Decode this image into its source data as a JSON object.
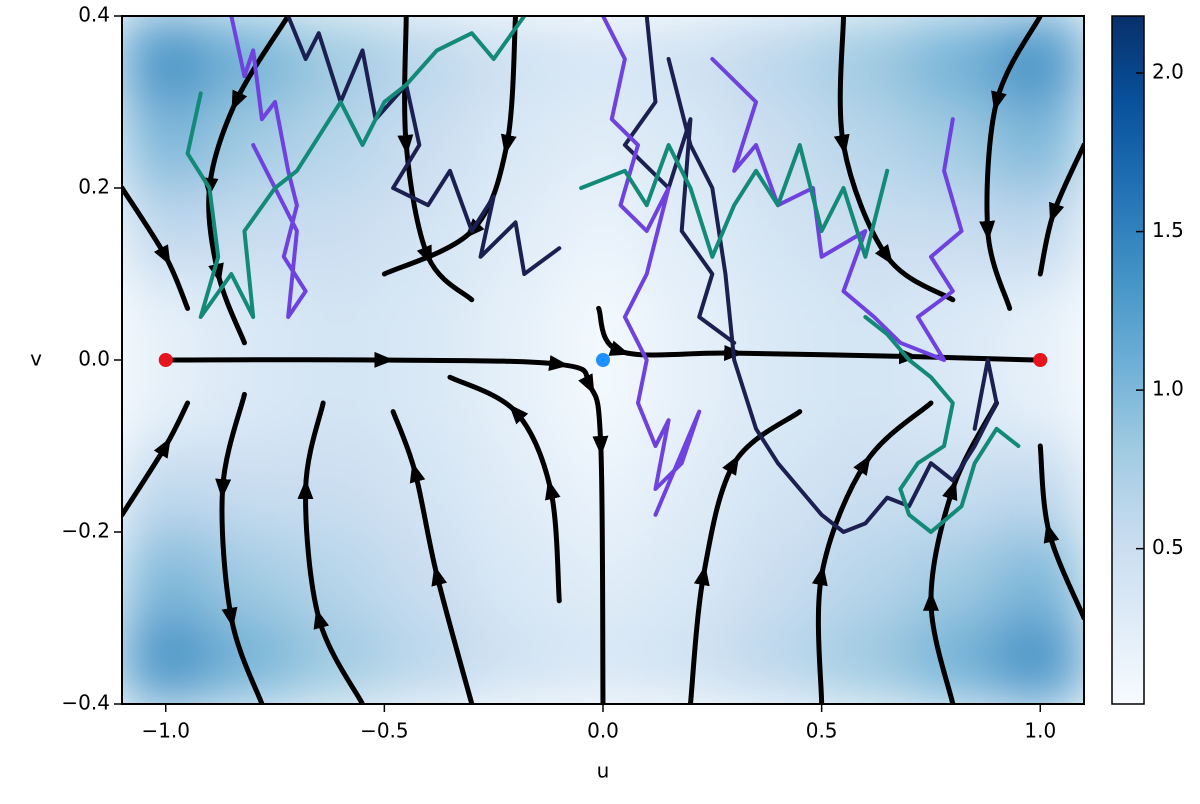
{
  "chart_data": [
    {
      "type": "heatmap",
      "xlabel": "u",
      "ylabel": "v",
      "xlim": [
        -1.1,
        1.1
      ],
      "ylim": [
        -0.4,
        0.4
      ],
      "xticks": [
        {
          "value": -1,
          "label": "−1.0"
        },
        {
          "value": -0.5,
          "label": "−0.5"
        },
        {
          "value": 0,
          "label": "0.0"
        },
        0.5,
        {
          "value": 1,
          "label": "1.0"
        }
      ],
      "yticks": [
        {
          "value": -0.4,
          "label": "−0.4"
        },
        {
          "value": -0.2,
          "label": "−0.2"
        },
        {
          "value": 0,
          "label": "0.0"
        },
        0.2,
        0.4
      ],
      "x": [
        -1.0,
        -0.8,
        -0.6,
        -0.4,
        -0.2,
        0.0,
        0.2,
        0.4,
        0.6,
        0.8,
        1.0
      ],
      "y": [
        -0.35,
        -0.25,
        -0.15,
        -0.05,
        0.05,
        0.15,
        0.25,
        0.35
      ],
      "z": [
        [
          1.4,
          1.06,
          0.82,
          0.62,
          0.44,
          0.35,
          0.44,
          0.62,
          0.82,
          1.06,
          1.4
        ],
        [
          1.0,
          0.79,
          0.65,
          0.5,
          0.34,
          0.25,
          0.34,
          0.5,
          0.65,
          0.79,
          1.0
        ],
        [
          0.6,
          0.52,
          0.5,
          0.4,
          0.26,
          0.15,
          0.26,
          0.4,
          0.5,
          0.52,
          0.6
        ],
        [
          0.2,
          0.33,
          0.4,
          0.34,
          0.2,
          0.05,
          0.2,
          0.34,
          0.4,
          0.33,
          0.2
        ],
        [
          0.2,
          0.33,
          0.4,
          0.34,
          0.2,
          0.05,
          0.2,
          0.34,
          0.4,
          0.33,
          0.2
        ],
        [
          0.6,
          0.52,
          0.5,
          0.4,
          0.26,
          0.15,
          0.26,
          0.4,
          0.5,
          0.52,
          0.6
        ],
        [
          1.0,
          0.79,
          0.65,
          0.5,
          0.34,
          0.25,
          0.34,
          0.5,
          0.65,
          0.79,
          1.0
        ],
        [
          1.4,
          1.06,
          0.82,
          0.62,
          0.44,
          0.35,
          0.44,
          0.62,
          0.82,
          1.06,
          1.4
        ]
      ],
      "colormap": [
        "#f7fbff",
        "#deebf7",
        "#c6dbef",
        "#9ecae1",
        "#6baed6",
        "#4292c6",
        "#2171b5",
        "#08519c",
        "#08306b"
      ],
      "clim": [
        0.01,
        2.18
      ],
      "cticks": [
        0.5,
        {
          "value": 1,
          "label": "1.0"
        },
        1.5,
        {
          "value": 2,
          "label": "2.0"
        }
      ]
    },
    {
      "type": "line",
      "color": "#000000",
      "series": [
        {
          "x": [
            -0.99,
            -0.5,
            -0.1,
            -0.03,
            -0.005,
            0.0
          ],
          "y": [
            0.0,
            0.0,
            -0.005,
            -0.03,
            -0.1,
            -0.4
          ]
        },
        {
          "x": [
            -0.01,
            0.04,
            0.3,
            0.7,
            0.99
          ],
          "y": [
            0.06,
            0.01,
            0.008,
            0.004,
            0.0
          ]
        },
        {
          "x": [
            -0.72,
            -0.84,
            -0.9,
            -0.88,
            -0.82
          ],
          "y": [
            0.4,
            0.3,
            0.2,
            0.1,
            0.02
          ]
        },
        {
          "x": [
            -0.82,
            -0.87,
            -0.85,
            -0.78
          ],
          "y": [
            -0.04,
            -0.15,
            -0.3,
            -0.4
          ]
        },
        {
          "x": [
            -1.1,
            -1.0,
            -0.95
          ],
          "y": [
            -0.18,
            -0.1,
            -0.05
          ]
        },
        {
          "x": [
            -1.1,
            -1.0,
            -0.95
          ],
          "y": [
            0.2,
            0.12,
            0.06
          ]
        },
        {
          "x": [
            -0.55,
            -0.65,
            -0.68,
            -0.64
          ],
          "y": [
            -0.4,
            -0.3,
            -0.15,
            -0.05
          ]
        },
        {
          "x": [
            -0.3,
            -0.38,
            -0.43,
            -0.48
          ],
          "y": [
            -0.4,
            -0.25,
            -0.13,
            -0.06
          ]
        },
        {
          "x": [
            -0.1,
            -0.12,
            -0.2,
            -0.35
          ],
          "y": [
            -0.28,
            -0.15,
            -0.06,
            -0.02
          ]
        },
        {
          "x": [
            0.2,
            0.23,
            0.3,
            0.45
          ],
          "y": [
            -0.4,
            -0.25,
            -0.12,
            -0.06
          ]
        },
        {
          "x": [
            0.5,
            0.5,
            0.6,
            0.75
          ],
          "y": [
            -0.4,
            -0.25,
            -0.12,
            -0.05
          ]
        },
        {
          "x": [
            0.8,
            0.75,
            0.8,
            0.9
          ],
          "y": [
            -0.4,
            -0.28,
            -0.15,
            -0.05
          ]
        },
        {
          "x": [
            -0.45,
            -0.45,
            -0.4,
            -0.3
          ],
          "y": [
            0.4,
            0.25,
            0.12,
            0.07
          ]
        },
        {
          "x": [
            -0.2,
            -0.22,
            -0.3,
            -0.5
          ],
          "y": [
            0.4,
            0.25,
            0.15,
            0.1
          ]
        },
        {
          "x": [
            0.55,
            0.55,
            0.65,
            0.8
          ],
          "y": [
            0.4,
            0.25,
            0.12,
            0.07
          ]
        },
        {
          "x": [
            1.0,
            0.9,
            0.88,
            0.93
          ],
          "y": [
            0.4,
            0.3,
            0.15,
            0.06
          ]
        },
        {
          "x": [
            1.1,
            1.02,
            1.0
          ],
          "y": [
            -0.3,
            -0.2,
            -0.1
          ]
        },
        {
          "x": [
            1.1,
            1.03,
            1.0
          ],
          "y": [
            0.25,
            0.17,
            0.1
          ]
        }
      ]
    },
    {
      "type": "line",
      "series": [
        {
          "color": "#1c2050",
          "x": [
            -0.72,
            -0.68,
            -0.65,
            -0.6,
            -0.55,
            -0.52,
            -0.45,
            -0.42,
            -0.48,
            -0.4,
            -0.35,
            -0.3,
            -0.25,
            -0.28,
            -0.2,
            -0.18,
            -0.1
          ],
          "y": [
            0.4,
            0.35,
            0.38,
            0.3,
            0.36,
            0.28,
            0.32,
            0.25,
            0.2,
            0.18,
            0.22,
            0.15,
            0.19,
            0.12,
            0.16,
            0.1,
            0.13
          ]
        },
        {
          "color": "#1c2050",
          "x": [
            0.15,
            0.2,
            0.25,
            0.28,
            0.3,
            0.35,
            0.4,
            0.45,
            0.5,
            0.55,
            0.6,
            0.65,
            0.7,
            0.75,
            0.8,
            0.85,
            0.9,
            0.88,
            0.85
          ],
          "y": [
            0.35,
            0.25,
            0.2,
            0.1,
            0.0,
            -0.08,
            -0.12,
            -0.15,
            -0.18,
            -0.2,
            -0.19,
            -0.16,
            -0.17,
            -0.12,
            -0.14,
            -0.1,
            -0.05,
            0.0,
            -0.08
          ]
        },
        {
          "color": "#1c2050",
          "x": [
            0.1,
            0.12,
            0.05,
            0.15,
            0.2,
            0.18,
            0.25,
            0.22,
            0.3
          ],
          "y": [
            0.4,
            0.3,
            0.25,
            0.2,
            0.28,
            0.15,
            0.1,
            0.05,
            0.02
          ]
        },
        {
          "color": "#6f42e0",
          "x": [
            -0.85,
            -0.82,
            -0.8,
            -0.78,
            -0.75,
            -0.72,
            -0.7,
            -0.73,
            -0.68,
            -0.72,
            -0.7,
            -0.75,
            -0.8
          ],
          "y": [
            0.4,
            0.33,
            0.36,
            0.28,
            0.3,
            0.22,
            0.18,
            0.12,
            0.08,
            0.05,
            0.15,
            0.2,
            0.25
          ]
        },
        {
          "color": "#6f42e0",
          "x": [
            0.0,
            0.05,
            0.02,
            0.08,
            0.04,
            0.1,
            0.15,
            0.1,
            0.05,
            0.1,
            0.08,
            0.12,
            0.15,
            0.12,
            0.18,
            0.22,
            0.12
          ],
          "y": [
            0.4,
            0.35,
            0.28,
            0.25,
            0.18,
            0.15,
            0.2,
            0.1,
            0.05,
            0.0,
            -0.05,
            -0.1,
            -0.07,
            -0.15,
            -0.12,
            -0.06,
            -0.18
          ]
        },
        {
          "color": "#6f42e0",
          "x": [
            0.8,
            0.78,
            0.82,
            0.75,
            0.8,
            0.72,
            0.78,
            0.68,
            0.62,
            0.55,
            0.6,
            0.5,
            0.48,
            0.4,
            0.35,
            0.3,
            0.35,
            0.25
          ],
          "y": [
            0.28,
            0.22,
            0.15,
            0.12,
            0.08,
            0.05,
            0.0,
            0.02,
            0.05,
            0.08,
            0.15,
            0.12,
            0.2,
            0.18,
            0.25,
            0.22,
            0.3,
            0.35
          ]
        },
        {
          "color": "#138a77",
          "x": [
            -0.92,
            -0.95,
            -0.9,
            -0.88,
            -0.92,
            -0.85,
            -0.8,
            -0.82,
            -0.75,
            -0.7,
            -0.65,
            -0.6,
            -0.55,
            -0.5,
            -0.45,
            -0.38,
            -0.3,
            -0.25,
            -0.18
          ],
          "y": [
            0.31,
            0.24,
            0.2,
            0.12,
            0.05,
            0.1,
            0.05,
            0.15,
            0.2,
            0.22,
            0.26,
            0.3,
            0.25,
            0.3,
            0.32,
            0.36,
            0.38,
            0.35,
            0.4
          ]
        },
        {
          "color": "#138a77",
          "x": [
            -0.05,
            0.05,
            0.1,
            0.15,
            0.2,
            0.25,
            0.3,
            0.35,
            0.4,
            0.45,
            0.5,
            0.55,
            0.6,
            0.65
          ],
          "y": [
            0.2,
            0.22,
            0.18,
            0.25,
            0.2,
            0.12,
            0.18,
            0.22,
            0.18,
            0.25,
            0.15,
            0.2,
            0.12,
            0.22
          ]
        },
        {
          "color": "#138a77",
          "x": [
            0.6,
            0.65,
            0.7,
            0.75,
            0.8,
            0.78,
            0.72,
            0.68,
            0.7,
            0.75,
            0.82,
            0.85,
            0.9,
            0.95
          ],
          "y": [
            0.05,
            0.03,
            0.0,
            -0.02,
            -0.05,
            -0.1,
            -0.12,
            -0.15,
            -0.18,
            -0.2,
            -0.17,
            -0.12,
            -0.08,
            -0.1
          ]
        }
      ]
    },
    {
      "type": "scatter",
      "series": [
        {
          "color": "#e8141b",
          "x": [
            -1,
            1
          ],
          "y": [
            0,
            0
          ]
        },
        {
          "color": "#1e90ff",
          "x": [
            0
          ],
          "y": [
            0
          ]
        }
      ]
    }
  ]
}
